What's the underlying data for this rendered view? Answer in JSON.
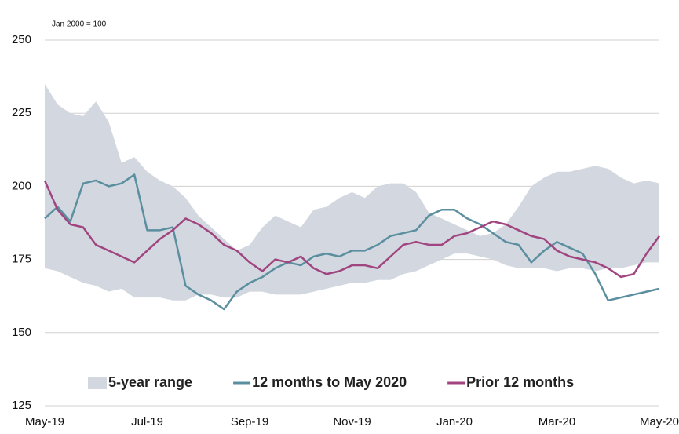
{
  "chart_data": {
    "type": "line",
    "subtitle": "Jan 2000 = 100",
    "categories": [
      "May-19",
      null,
      null,
      null,
      null,
      null,
      null,
      null,
      "Jul-19",
      null,
      null,
      null,
      null,
      null,
      null,
      null,
      "Sep-19",
      null,
      null,
      null,
      null,
      null,
      null,
      null,
      "Nov-19",
      null,
      null,
      null,
      null,
      null,
      null,
      null,
      "Jan-20",
      null,
      null,
      null,
      null,
      null,
      null,
      null,
      "Mar-20",
      null,
      null,
      null,
      null,
      null,
      null,
      null,
      "May-20"
    ],
    "range": {
      "name": "5-year range",
      "color": "#d3d8e0",
      "high": [
        235,
        228,
        225,
        224,
        229,
        222,
        208,
        210,
        205,
        202,
        200,
        196,
        190,
        186,
        182,
        178,
        180,
        186,
        190,
        188,
        186,
        192,
        193,
        196,
        198,
        196,
        200,
        201,
        201,
        198,
        191,
        189,
        187,
        185,
        183,
        184,
        187,
        193,
        200,
        203,
        205,
        205,
        206,
        207,
        206,
        203,
        201,
        202,
        201
      ],
      "low": [
        172,
        171,
        169,
        167,
        166,
        164,
        165,
        162,
        162,
        162,
        161,
        161,
        163,
        163,
        162,
        162,
        164,
        164,
        163,
        163,
        163,
        164,
        165,
        166,
        167,
        167,
        168,
        168,
        170,
        171,
        173,
        175,
        177,
        177,
        176,
        175,
        173,
        172,
        172,
        172,
        171,
        172,
        172,
        171,
        172,
        172,
        173,
        174,
        174
      ]
    },
    "series": [
      {
        "name": "12 months to May 2020",
        "color": "#5b8fa0",
        "values": [
          189,
          193,
          188,
          201,
          202,
          200,
          201,
          204,
          185,
          185,
          186,
          166,
          163,
          161,
          158,
          164,
          167,
          169,
          172,
          174,
          173,
          176,
          177,
          176,
          178,
          178,
          180,
          183,
          184,
          185,
          190,
          192,
          192,
          189,
          187,
          184,
          181,
          180,
          174,
          178,
          181,
          179,
          177,
          170,
          161,
          162,
          163,
          164,
          165
        ]
      },
      {
        "name": "Prior 12 months",
        "color": "#a0457f",
        "values": [
          202,
          192,
          187,
          186,
          180,
          178,
          176,
          174,
          178,
          182,
          185,
          189,
          187,
          184,
          180,
          178,
          174,
          171,
          175,
          174,
          176,
          172,
          170,
          171,
          173,
          173,
          172,
          176,
          180,
          181,
          180,
          180,
          183,
          184,
          186,
          188,
          187,
          185,
          183,
          182,
          178,
          176,
          175,
          174,
          172,
          169,
          170,
          177,
          183
        ]
      }
    ],
    "ylim": [
      125,
      250
    ],
    "yticks": [
      125,
      150,
      175,
      200,
      225,
      250
    ],
    "grid": true
  }
}
